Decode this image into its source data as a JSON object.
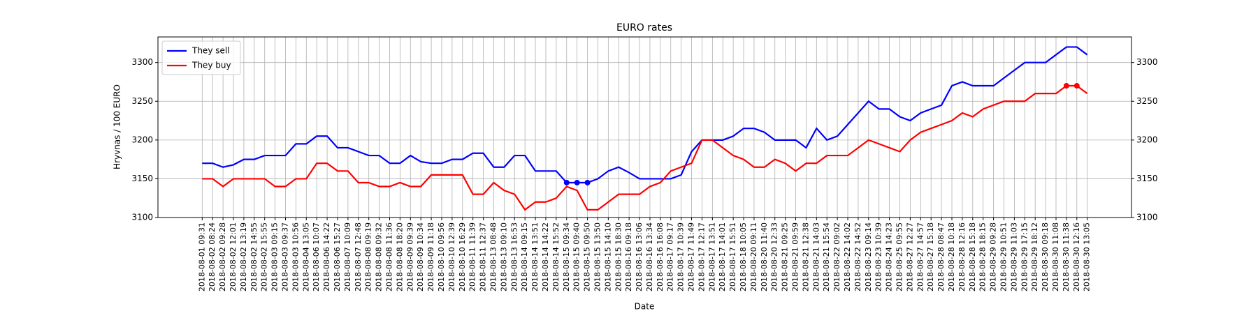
{
  "chart_data": {
    "type": "line",
    "title": "EURO rates",
    "xlabel": "Date",
    "ylabel": "Hryvnas / 100 EURO",
    "categories": [
      "2018-08-01 09:31",
      "2018-08-02 08:24",
      "2018-08-02 09:28",
      "2018-08-02 12:01",
      "2018-08-02 13:19",
      "2018-08-02 14:55",
      "2018-08-02 15:55",
      "2018-08-03 09:15",
      "2018-08-03 09:37",
      "2018-08-03 10:56",
      "2018-08-04 13:05",
      "2018-08-06 10:07",
      "2018-08-06 14:22",
      "2018-08-06 15:27",
      "2018-08-07 10:09",
      "2018-08-07 12:48",
      "2018-08-08 09:19",
      "2018-08-08 09:32",
      "2018-08-08 11:36",
      "2018-08-08 18:20",
      "2018-08-09 09:39",
      "2018-08-09 10:34",
      "2018-08-09 11:18",
      "2018-08-10 09:56",
      "2018-08-10 12:39",
      "2018-08-10 16:29",
      "2018-08-11 11:39",
      "2018-08-11 12:37",
      "2018-08-13 08:48",
      "2018-08-13 09:10",
      "2018-08-13 16:53",
      "2018-08-14 09:15",
      "2018-08-14 13:51",
      "2018-08-14 14:22",
      "2018-08-14 15:52",
      "2018-08-15 09:34",
      "2018-08-15 09:40",
      "2018-08-15 09:50",
      "2018-08-15 13:50",
      "2018-08-15 14:10",
      "2018-08-15 18:30",
      "2018-08-16 09:18",
      "2018-08-16 13:06",
      "2018-08-16 13:34",
      "2018-08-16 16:08",
      "2018-08-17 09:17",
      "2018-08-17 10:39",
      "2018-08-17 11:49",
      "2018-08-17 12:17",
      "2018-08-17 13:51",
      "2018-08-17 14:01",
      "2018-08-17 15:51",
      "2018-08-18 10:05",
      "2018-08-20 09:11",
      "2018-08-20 11:40",
      "2018-08-20 12:33",
      "2018-08-21 09:25",
      "2018-08-21 09:59",
      "2018-08-21 12:38",
      "2018-08-21 14:03",
      "2018-08-21 15:54",
      "2018-08-22 09:02",
      "2018-08-22 14:02",
      "2018-08-22 14:52",
      "2018-08-23 09:14",
      "2018-08-23 10:39",
      "2018-08-24 14:23",
      "2018-08-25 09:55",
      "2018-08-27 12:27",
      "2018-08-27 14:57",
      "2018-08-27 15:18",
      "2018-08-28 08:47",
      "2018-08-28 10:18",
      "2018-08-28 12:16",
      "2018-08-28 15:18",
      "2018-08-28 18:15",
      "2018-08-29 09:28",
      "2018-08-29 10:51",
      "2018-08-29 11:03",
      "2018-08-29 17:15",
      "2018-08-29 18:12",
      "2018-08-30 09:18",
      "2018-08-30 11:08",
      "2018-08-30 11:38",
      "2018-08-30 12:16",
      "2018-08-30 13:05"
    ],
    "series": [
      {
        "name": "They sell",
        "color": "#0000ff",
        "highlight": "min",
        "values": [
          3170,
          3170,
          3165,
          3168,
          3175,
          3175,
          3180,
          3180,
          3180,
          3195,
          3195,
          3205,
          3205,
          3190,
          3190,
          3185,
          3180,
          3180,
          3170,
          3170,
          3180,
          3172,
          3170,
          3170,
          3175,
          3175,
          3183,
          3183,
          3165,
          3165,
          3180,
          3180,
          3160,
          3160,
          3160,
          3145,
          3145,
          3145,
          3150,
          3160,
          3165,
          3158,
          3150,
          3150,
          3150,
          3150,
          3155,
          3185,
          3200,
          3200,
          3200,
          3205,
          3215,
          3215,
          3210,
          3200,
          3200,
          3200,
          3190,
          3215,
          3200,
          3205,
          3220,
          3235,
          3250,
          3240,
          3240,
          3230,
          3225,
          3235,
          3240,
          3245,
          3270,
          3275,
          3270,
          3270,
          3270,
          3280,
          3290,
          3300,
          3300,
          3300,
          3310,
          3320,
          3320,
          3310
        ]
      },
      {
        "name": "They buy",
        "color": "#ff0000",
        "highlight": "max",
        "values": [
          3150,
          3150,
          3140,
          3150,
          3150,
          3150,
          3150,
          3140,
          3140,
          3150,
          3150,
          3170,
          3170,
          3160,
          3160,
          3145,
          3145,
          3140,
          3140,
          3145,
          3140,
          3140,
          3155,
          3155,
          3155,
          3155,
          3130,
          3130,
          3145,
          3135,
          3130,
          3110,
          3120,
          3120,
          3125,
          3140,
          3135,
          3110,
          3110,
          3120,
          3130,
          3130,
          3130,
          3140,
          3145,
          3160,
          3165,
          3170,
          3200,
          3200,
          3190,
          3180,
          3175,
          3165,
          3165,
          3175,
          3170,
          3160,
          3170,
          3170,
          3180,
          3180,
          3180,
          3190,
          3200,
          3195,
          3190,
          3185,
          3200,
          3210,
          3215,
          3220,
          3225,
          3235,
          3230,
          3240,
          3245,
          3250,
          3250,
          3250,
          3260,
          3260,
          3260,
          3270,
          3270,
          3260
        ]
      }
    ],
    "ylim": [
      3100,
      3333
    ],
    "yticks": [
      3100,
      3150,
      3200,
      3250,
      3300
    ],
    "grid": true,
    "legend": "upper left"
  }
}
